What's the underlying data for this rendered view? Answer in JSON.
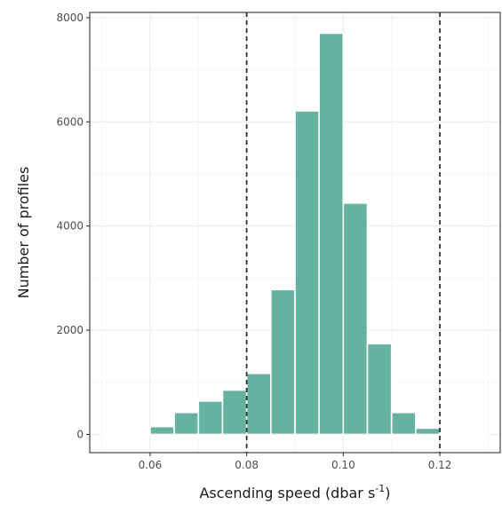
{
  "chart_data": {
    "type": "bar",
    "subtype": "histogram",
    "xlabel_main": "Ascending speed (dbar s",
    "xlabel_sup": "-1",
    "xlabel_tail": ")",
    "ylabel": "Number of profiles",
    "xlim": [
      0.0475,
      0.1325
    ],
    "ylim": [
      -350,
      8100
    ],
    "x_ticks": [
      0.06,
      0.08,
      0.1,
      0.12
    ],
    "x_tick_labels": [
      "0.06",
      "0.08",
      "0.10",
      "0.12"
    ],
    "y_ticks": [
      0,
      2000,
      4000,
      6000,
      8000
    ],
    "y_tick_labels": [
      "0",
      "2000",
      "4000",
      "6000",
      "8000"
    ],
    "bin_width": 0.005,
    "bins": [
      {
        "x0": 0.05,
        "count": 2
      },
      {
        "x0": 0.055,
        "count": 10
      },
      {
        "x0": 0.06,
        "count": 150
      },
      {
        "x0": 0.065,
        "count": 420
      },
      {
        "x0": 0.07,
        "count": 640
      },
      {
        "x0": 0.075,
        "count": 850
      },
      {
        "x0": 0.08,
        "count": 1170
      },
      {
        "x0": 0.085,
        "count": 2780
      },
      {
        "x0": 0.09,
        "count": 6210
      },
      {
        "x0": 0.095,
        "count": 7700
      },
      {
        "x0": 0.1,
        "count": 4440
      },
      {
        "x0": 0.105,
        "count": 1740
      },
      {
        "x0": 0.11,
        "count": 420
      },
      {
        "x0": 0.115,
        "count": 120
      },
      {
        "x0": 0.12,
        "count": 15
      },
      {
        "x0": 0.125,
        "count": 3
      }
    ],
    "reference_lines": [
      0.08,
      0.12
    ],
    "grid": true,
    "bar_color": "#66b2a0",
    "bar_edge": "#ffffff",
    "grid_major_color": "#ebebeb",
    "grid_minor_color": "#f5f5f5",
    "panel_border_color": "#333333",
    "reference_line_color": "#333333"
  }
}
